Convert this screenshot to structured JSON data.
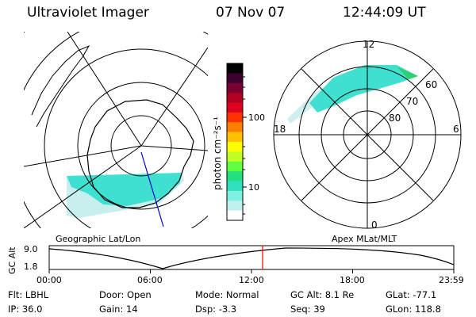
{
  "header": {
    "instrument": "Ultraviolet Imager",
    "date": "07 Nov 07",
    "time": "12:44:09 UT"
  },
  "colorbar": {
    "unit_label": "photon cm⁻²s⁻¹",
    "ticks": [
      "100",
      "10"
    ],
    "colors": [
      "#000000",
      "#3a0030",
      "#7a0030",
      "#b00020",
      "#e00020",
      "#ff3000",
      "#ff8000",
      "#ffc000",
      "#ffff00",
      "#c0ff20",
      "#60ff40",
      "#20e080",
      "#30e0c0",
      "#80f0e0",
      "#c0f0f0",
      "#ffffff"
    ]
  },
  "left_map": {
    "caption": "Geographic Lat/Lon",
    "aurora_color": "#40e0d0",
    "fade_color": "#c8eeee",
    "coast_color": "#000000",
    "meridian_color": "#0000cc"
  },
  "right_map": {
    "caption": "Apex MLat/MLT",
    "mlt_labels": {
      "top": "12",
      "left": "18",
      "right": "6",
      "bottom": "0"
    },
    "lat_labels": [
      "60",
      "70",
      "80"
    ],
    "aurora_color": "#40e0d0",
    "edge_color": "#30d070"
  },
  "altitude_plot": {
    "y_label": "GC Alt",
    "y_ticks": [
      "9.0",
      "1.8"
    ],
    "x_ticks": [
      "00:00",
      "06:00",
      "12:00",
      "18:00",
      "23:59"
    ],
    "marker_color": "#ff0000",
    "current_hour": 12.73
  },
  "status": {
    "row1": [
      {
        "key": "Flt:",
        "value": "LBHL"
      },
      {
        "key": "Door:",
        "value": "Open"
      },
      {
        "key": "Mode:",
        "value": "Normal"
      },
      {
        "key": "GC Alt:",
        "value": "8.1 Re"
      },
      {
        "key": "GLat:",
        "value": "-77.1"
      }
    ],
    "row2": [
      {
        "key": "IP:",
        "value": "36.0"
      },
      {
        "key": "Gain:",
        "value": "14"
      },
      {
        "key": "Dsp:",
        "value": "-3.3"
      },
      {
        "key": "Seq:",
        "value": "39"
      },
      {
        "key": "GLon:",
        "value": "118.8"
      }
    ]
  }
}
